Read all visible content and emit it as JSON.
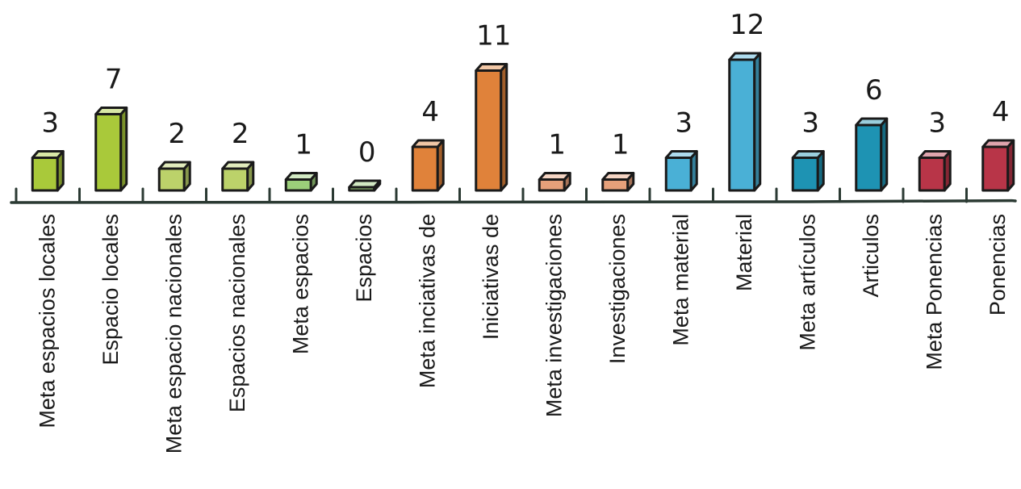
{
  "chart_data": {
    "type": "bar",
    "title": "",
    "xlabel": "",
    "ylabel": "",
    "ylim": [
      0,
      12
    ],
    "grid": false,
    "style": "hand-drawn 3D bars",
    "categories": [
      "Meta espacios locales",
      "Espacio locales",
      "Meta espacio nacionales",
      "Espacios nacionales",
      "Meta espacios",
      "Espacios",
      "Meta inciativas de",
      "Iniciativas de",
      "Meta investigaciones",
      "Investigaciones",
      "Meta material",
      "Material",
      "Meta artículos",
      "Articulos",
      "Meta Ponencias",
      "Ponencias"
    ],
    "values": [
      3,
      7,
      2,
      2,
      1,
      0,
      4,
      11,
      1,
      1,
      3,
      12,
      3,
      6,
      3,
      4
    ],
    "value_labels": [
      "3",
      "7",
      "2",
      "2",
      "1",
      "0",
      "4",
      "11",
      "1",
      "1",
      "3",
      "12",
      "3",
      "6",
      "3",
      "4"
    ],
    "colors": [
      "#a9c93a",
      "#a9c93a",
      "#bcd26a",
      "#bcd26a",
      "#9ccf7a",
      "#9ccf7a",
      "#e0823a",
      "#e0823a",
      "#e6a07a",
      "#e6a07a",
      "#4ab0d6",
      "#4ab0d6",
      "#1e93b3",
      "#1e93b3",
      "#b83548",
      "#b83548"
    ]
  }
}
